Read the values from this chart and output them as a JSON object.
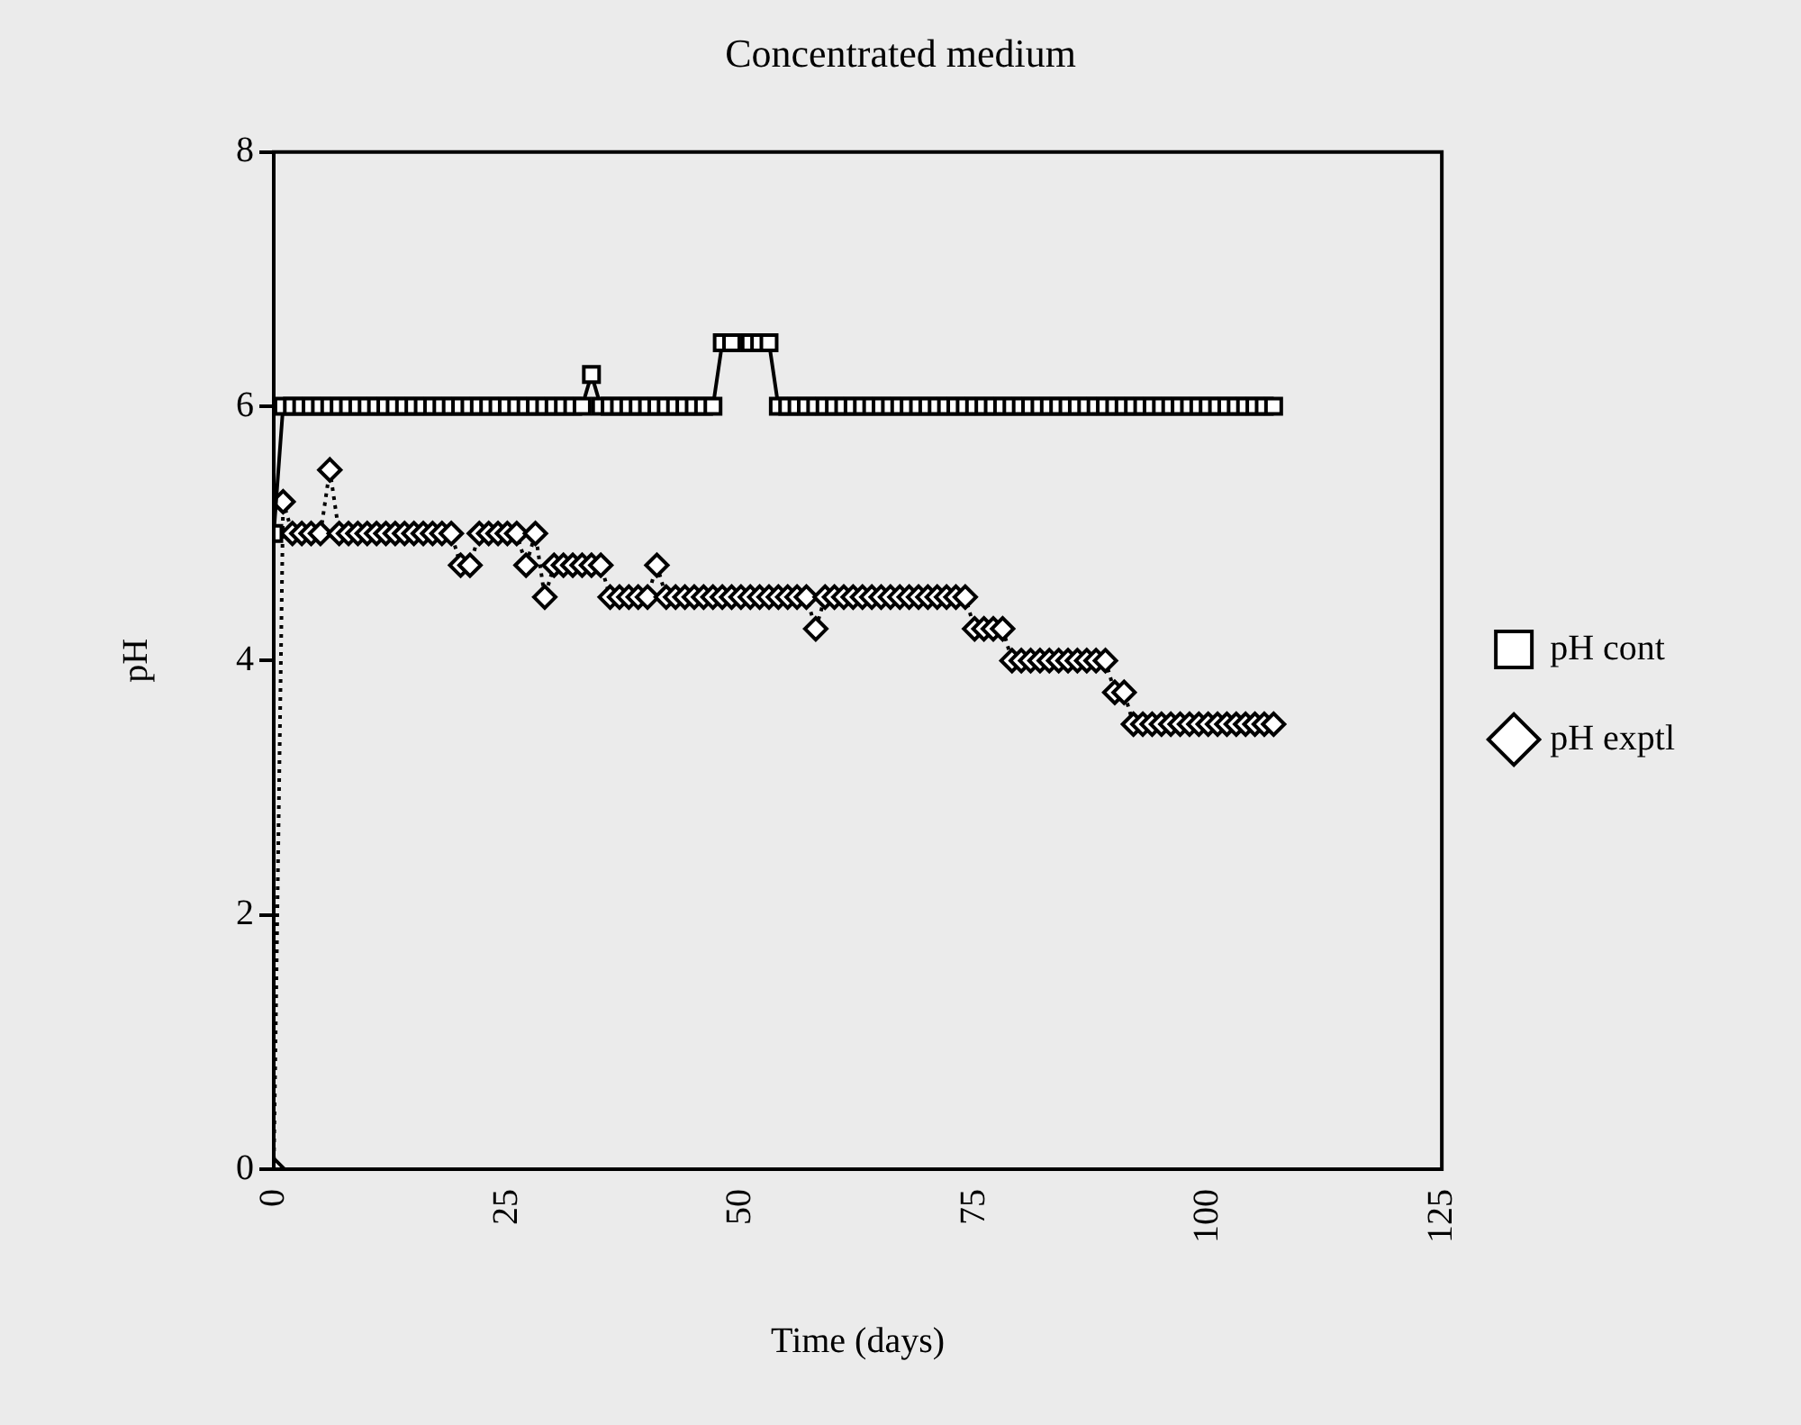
{
  "chart_data": {
    "type": "line",
    "title": "Concentrated medium",
    "xlabel": "Time (days)",
    "ylabel": "pH",
    "x": [
      0,
      1,
      2,
      3,
      4,
      5,
      6,
      7,
      8,
      9,
      10,
      11,
      12,
      13,
      14,
      15,
      16,
      17,
      18,
      19,
      20,
      21,
      22,
      23,
      24,
      25,
      26,
      27,
      28,
      29,
      30,
      31,
      32,
      33,
      34,
      35,
      36,
      37,
      38,
      39,
      40,
      41,
      42,
      43,
      44,
      45,
      46,
      47,
      48,
      49,
      50,
      51,
      52,
      53,
      54,
      55,
      56,
      57,
      58,
      59,
      60,
      61,
      62,
      63,
      64,
      65,
      66,
      67,
      68,
      69,
      70,
      71,
      72,
      73,
      74,
      75,
      76,
      77,
      78,
      79,
      80,
      81,
      82,
      83,
      84,
      85,
      86,
      87,
      88,
      89,
      90,
      91,
      92,
      93,
      94,
      95,
      96,
      97,
      98,
      99,
      100,
      101,
      102,
      103,
      104,
      105,
      106,
      107
    ],
    "series": [
      {
        "name": "pH cont",
        "color": "#000000",
        "marker": "square",
        "line_style": "solid",
        "values": [
          5,
          6,
          6,
          6,
          6,
          6,
          6,
          6,
          6,
          6,
          6,
          6,
          6,
          6,
          6,
          6,
          6,
          6,
          6,
          6,
          6,
          6,
          6,
          6,
          6,
          6,
          6,
          6,
          6,
          6,
          6,
          6,
          6,
          6,
          6.25,
          6,
          6,
          6,
          6,
          6,
          6,
          6,
          6,
          6,
          6,
          6,
          6,
          6,
          6.5,
          6.5,
          null,
          6.5,
          6.5,
          6.5,
          6,
          6,
          6,
          6,
          6,
          6,
          6,
          6,
          6,
          6,
          6,
          6,
          6,
          6,
          6,
          6,
          6,
          6,
          6,
          6,
          6,
          6,
          6,
          6,
          6,
          6,
          6,
          6,
          6,
          6,
          6,
          6,
          6,
          6,
          6,
          6,
          6,
          6,
          6,
          6,
          6,
          6,
          6,
          6,
          6,
          6,
          6,
          6,
          6,
          6,
          6,
          6,
          6,
          6
        ]
      },
      {
        "name": "pH exptl",
        "color": "#000000",
        "marker": "diamond",
        "line_style": "dotted",
        "values": [
          0,
          5.25,
          5,
          5,
          5,
          5,
          5.5,
          5,
          5,
          5,
          5,
          5,
          5,
          5,
          5,
          5,
          5,
          5,
          5,
          5,
          4.75,
          4.75,
          5,
          5,
          5,
          5,
          5,
          4.75,
          5,
          4.5,
          4.75,
          4.75,
          4.75,
          4.75,
          4.75,
          4.75,
          4.5,
          4.5,
          4.5,
          4.5,
          4.5,
          4.75,
          4.5,
          4.5,
          4.5,
          4.5,
          4.5,
          4.5,
          4.5,
          4.5,
          4.5,
          4.5,
          4.5,
          4.5,
          4.5,
          4.5,
          4.5,
          4.5,
          4.25,
          4.5,
          4.5,
          4.5,
          4.5,
          4.5,
          4.5,
          4.5,
          4.5,
          4.5,
          4.5,
          4.5,
          4.5,
          4.5,
          4.5,
          4.5,
          4.5,
          4.25,
          4.25,
          4.25,
          4.25,
          4,
          4,
          4,
          4,
          4,
          4,
          4,
          4,
          4,
          4,
          4,
          3.75,
          3.75,
          3.5,
          3.5,
          3.5,
          3.5,
          3.5,
          3.5,
          3.5,
          3.5,
          3.5,
          3.5,
          3.5,
          3.5,
          3.5,
          3.5,
          3.5,
          3.5
        ]
      }
    ],
    "xlim": [
      0,
      125
    ],
    "xticks": [
      0,
      25,
      50,
      75,
      100,
      125
    ],
    "ylim": [
      0,
      8
    ],
    "yticks": [
      0,
      2,
      4,
      6,
      8
    ],
    "grid": false,
    "legend": "right"
  }
}
